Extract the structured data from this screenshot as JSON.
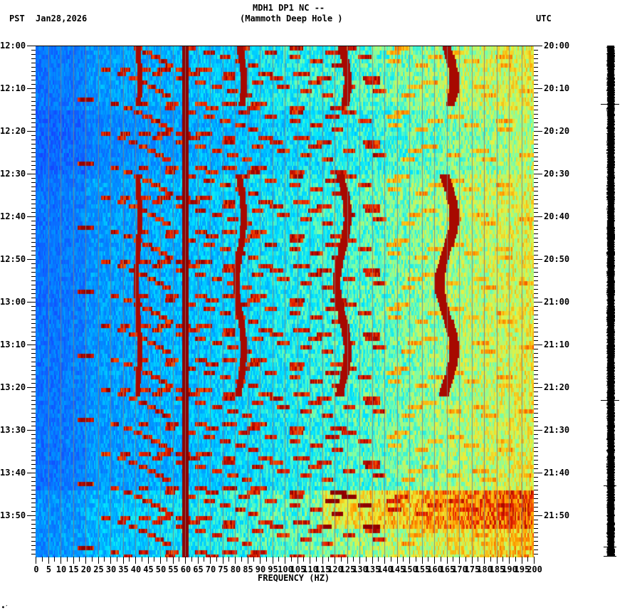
{
  "header": {
    "station_line": "MDH1 DP1 NC --",
    "site_line": "(Mammoth Deep Hole )",
    "left_tz": "PST",
    "date": "Jan28,2026",
    "right_tz": "UTC"
  },
  "footer_mark": "•′",
  "colors": {
    "low": "#1e64ff",
    "mid_low": "#00d2ff",
    "mid": "#7dffb0",
    "mid_high": "#f0f03c",
    "high": "#ff6400",
    "peak": "#8b0000",
    "gridline": "#808080"
  },
  "chart_data": {
    "type": "heatmap",
    "title": "MDH1 DP1 NC -- (Mammoth Deep Hole )",
    "subtitle": "PST Jan28,2026 / UTC",
    "xlabel": "FREQUENCY (HZ)",
    "ylabel_left": "PST",
    "ylabel_right": "UTC",
    "x_range": [
      0,
      200
    ],
    "x_ticks": [
      "0",
      "5",
      "10",
      "15",
      "20",
      "25",
      "30",
      "35",
      "40",
      "45",
      "50",
      "55",
      "60",
      "65",
      "70",
      "75",
      "80",
      "85",
      "90",
      "95",
      "100",
      "105",
      "110",
      "115",
      "120",
      "125",
      "130",
      "135",
      "140",
      "145",
      "150",
      "155",
      "160",
      "165",
      "170",
      "175",
      "180",
      "185",
      "190",
      "195",
      "200"
    ],
    "y_ticks_left": [
      "12:00",
      "12:10",
      "12:20",
      "12:30",
      "12:40",
      "12:50",
      "13:00",
      "13:10",
      "13:20",
      "13:30",
      "13:40",
      "13:50"
    ],
    "y_ticks_right": [
      "20:00",
      "20:10",
      "20:20",
      "20:30",
      "20:40",
      "20:50",
      "21:00",
      "21:10",
      "21:20",
      "21:30",
      "21:40",
      "21:50"
    ],
    "time_range_pst": [
      "12:00",
      "14:00"
    ],
    "grid": true,
    "colormap": "jet",
    "features": [
      {
        "label": "persistent line",
        "freq_hz": 60,
        "intensity": "peak"
      },
      {
        "label": "persistent line",
        "freq_hz": 120,
        "intensity": "high"
      },
      {
        "label": "persistent line",
        "freq_hz": 180,
        "intensity": "high"
      },
      {
        "label": "wandering line",
        "freq_hz_approx": 41,
        "times_pst": [
          "12:00-12:14",
          "12:30-13:22",
          "13:45-13:55"
        ]
      },
      {
        "label": "wandering line",
        "freq_hz_approx": 82,
        "times_pst": [
          "12:00-12:14",
          "12:30-13:22"
        ]
      },
      {
        "label": "wandering line",
        "freq_hz_approx": 123,
        "times_pst": [
          "12:00-12:14",
          "12:30-13:22",
          "13:45-13:52"
        ]
      },
      {
        "label": "wandering line",
        "freq_hz_approx": 165,
        "times_pst": [
          "12:00-12:14",
          "12:30-13:22",
          "13:45-13:52"
        ]
      },
      {
        "label": "repeating chirp harmonics",
        "period_min": 7.5,
        "freq_range_hz": [
          20,
          200
        ]
      }
    ],
    "seismic_trace_markers_pst": [
      "12:14",
      "13:24",
      "13:44",
      "13:55",
      "13:59"
    ]
  }
}
